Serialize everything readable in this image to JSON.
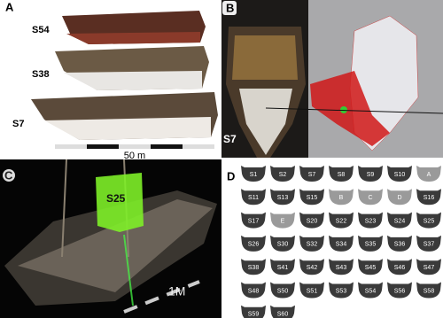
{
  "panel_a": {
    "label": "A",
    "ships": [
      "S54",
      "S38",
      "S7"
    ],
    "scale": "50 m"
  },
  "panel_b": {
    "label": "B",
    "section": "S7"
  },
  "panel_c": {
    "label": "C",
    "section": "S25",
    "scale": "1M"
  },
  "panel_d": {
    "label": "D",
    "rows": [
      [
        "S1",
        "S2",
        "S7",
        "S8",
        "S9",
        "S10",
        "A"
      ],
      [
        "S11",
        "S13",
        "S15",
        "B",
        "C",
        "D",
        "S16"
      ],
      [
        "S17",
        "E",
        "S20",
        "S22",
        "S23",
        "S24",
        "S25"
      ],
      [
        "S26",
        "S30",
        "S32",
        "S34",
        "S35",
        "S36",
        "S37"
      ],
      [
        "S38",
        "S41",
        "S42",
        "S43",
        "S45",
        "S46",
        "S47"
      ],
      [
        "S48",
        "S50",
        "S51",
        "S53",
        "S54",
        "S56",
        "S58"
      ],
      [
        "S59",
        "S60"
      ]
    ]
  }
}
